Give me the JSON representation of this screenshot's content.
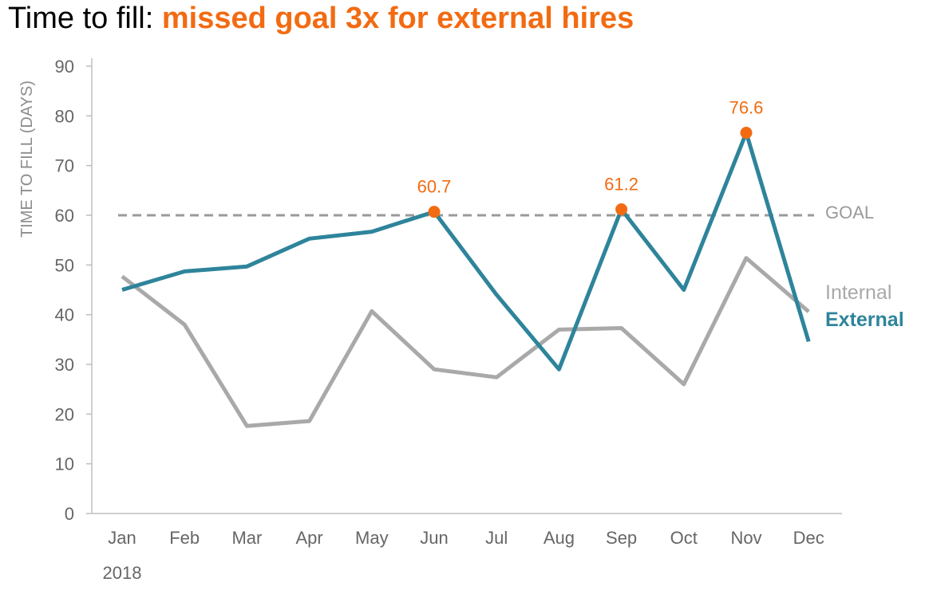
{
  "title": {
    "plain": "Time to fill: ",
    "accent": "missed goal 3x for external hires"
  },
  "colors": {
    "accent": "#f26b12",
    "external": "#2e849b",
    "internal": "#a9a9a9",
    "goal": "#9a9a9a",
    "axis": "#bfbfbf",
    "tick_text": "#666666"
  },
  "chart_data": {
    "type": "line",
    "title": "Time to fill: missed goal 3x for external hires",
    "xlabel": "",
    "ylabel": "TIME TO FILL (DAYS)",
    "year_label": "2018",
    "categories": [
      "Jan",
      "Feb",
      "Mar",
      "Apr",
      "May",
      "Jun",
      "Jul",
      "Aug",
      "Sep",
      "Oct",
      "Nov",
      "Dec"
    ],
    "ylim": [
      0,
      90
    ],
    "yticks": [
      0,
      10,
      20,
      30,
      40,
      50,
      60,
      70,
      80,
      90
    ],
    "grid": false,
    "series": [
      {
        "name": "Internal",
        "values": [
          47.7,
          38.0,
          17.6,
          18.6,
          40.7,
          29.0,
          27.4,
          37.0,
          37.3,
          26.0,
          51.4,
          40.6
        ]
      },
      {
        "name": "External",
        "values": [
          45.0,
          48.7,
          49.7,
          55.3,
          56.7,
          60.7,
          44.0,
          29.0,
          61.2,
          45.0,
          76.6,
          34.6
        ]
      }
    ],
    "goal": {
      "label": "GOAL",
      "value": 60
    },
    "highlighted_points": [
      {
        "category": "Jun",
        "value": 60.7,
        "label": "60.7"
      },
      {
        "category": "Sep",
        "value": 61.2,
        "label": "61.2"
      },
      {
        "category": "Nov",
        "value": 76.6,
        "label": "76.6"
      }
    ]
  }
}
